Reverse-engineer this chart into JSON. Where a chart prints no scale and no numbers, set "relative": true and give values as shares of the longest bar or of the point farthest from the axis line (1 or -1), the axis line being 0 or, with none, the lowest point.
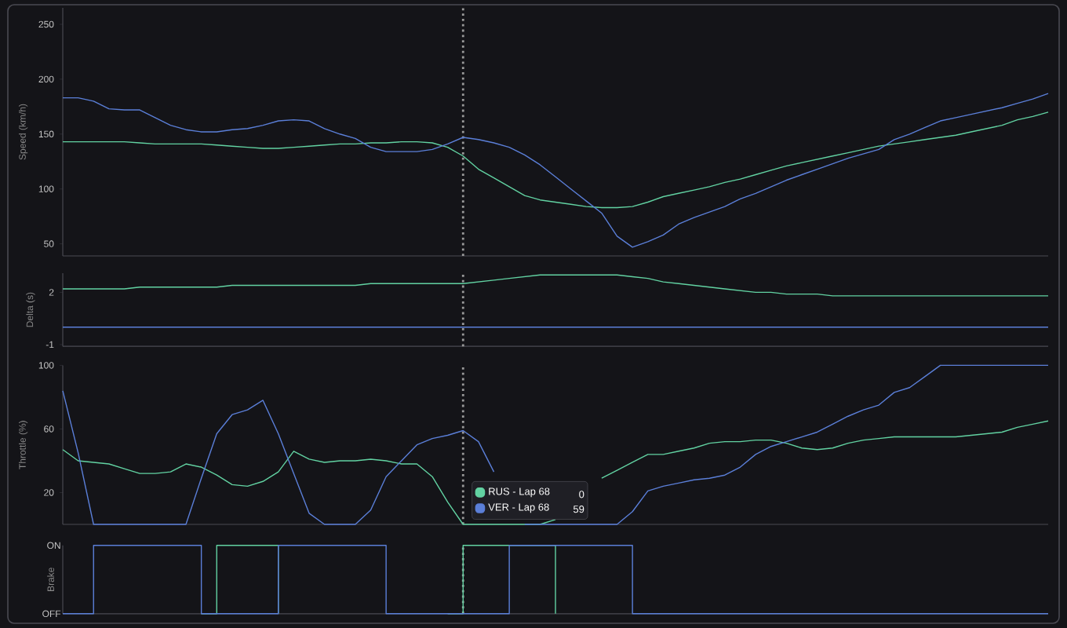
{
  "chart_data": [
    {
      "type": "line",
      "ylabel": "Speed (km/h)",
      "tick_labels": "y",
      "ylim": [
        39,
        265
      ],
      "yticks": [
        50,
        100,
        150,
        200,
        250
      ],
      "categories": [
        null,
        null,
        null,
        null,
        null,
        null,
        null,
        null,
        null,
        null,
        null,
        null,
        null,
        null,
        null,
        null,
        null,
        null,
        null,
        null,
        null,
        null,
        null,
        null,
        null,
        null,
        null,
        null,
        null,
        null,
        null,
        null,
        null,
        null,
        null,
        null,
        null,
        null,
        null,
        null,
        null,
        null,
        null,
        null,
        null,
        null,
        null,
        null,
        null,
        null,
        null,
        null,
        null,
        null,
        null,
        null,
        null,
        null,
        null,
        null,
        null,
        null,
        null,
        null,
        null
      ],
      "series": [
        {
          "color": "#62d2a2",
          "values": [
            143,
            143,
            143,
            143,
            143,
            142,
            141,
            141,
            141,
            141,
            140,
            139,
            138,
            137,
            137,
            138,
            139,
            140,
            141,
            141,
            142,
            142,
            143,
            143,
            142,
            138,
            130,
            118,
            110,
            102,
            94,
            90,
            88,
            86,
            84,
            83,
            83,
            84,
            88,
            93,
            96,
            99,
            102,
            106,
            109,
            113,
            117,
            121,
            124,
            127,
            130,
            133,
            136,
            139,
            141,
            143,
            145,
            147,
            149,
            152,
            155,
            158,
            163,
            166,
            170
          ]
        },
        {
          "color": "#5b7fd8",
          "values": [
            183,
            183,
            180,
            173,
            172,
            172,
            165,
            158,
            154,
            152,
            152,
            154,
            155,
            158,
            162,
            163,
            162,
            155,
            150,
            146,
            138,
            134,
            134,
            134,
            136,
            141,
            147,
            145,
            142,
            138,
            131,
            122,
            111,
            100,
            89,
            78,
            57,
            47,
            52,
            58,
            68,
            74,
            79,
            84,
            91,
            96,
            102,
            108,
            113,
            118,
            123,
            128,
            132,
            136,
            145,
            150,
            156,
            162,
            165,
            168,
            171,
            174,
            178,
            182,
            187
          ]
        }
      ]
    },
    {
      "type": "line",
      "ylabel": "Delta (s)",
      "tick_labels": "y",
      "ylim": [
        -1.1,
        3.1
      ],
      "yticks": [
        -1,
        2
      ],
      "categories": [
        null,
        null,
        null,
        null,
        null,
        null,
        null,
        null,
        null,
        null,
        null,
        null,
        null,
        null,
        null,
        null,
        null,
        null,
        null,
        null,
        null,
        null,
        null,
        null,
        null,
        null,
        null,
        null,
        null,
        null,
        null,
        null,
        null,
        null,
        null,
        null,
        null,
        null,
        null,
        null,
        null,
        null,
        null,
        null,
        null,
        null,
        null,
        null,
        null,
        null,
        null,
        null,
        null,
        null,
        null,
        null,
        null,
        null,
        null,
        null,
        null,
        null,
        null,
        null,
        null
      ],
      "series": [
        {
          "color": "#62d2a2",
          "values": [
            2.2,
            2.2,
            2.2,
            2.2,
            2.2,
            2.3,
            2.3,
            2.3,
            2.3,
            2.3,
            2.3,
            2.4,
            2.4,
            2.4,
            2.4,
            2.4,
            2.4,
            2.4,
            2.4,
            2.4,
            2.5,
            2.5,
            2.5,
            2.5,
            2.5,
            2.5,
            2.5,
            2.6,
            2.7,
            2.8,
            2.9,
            3.0,
            3.0,
            3.0,
            3.0,
            3.0,
            3.0,
            2.9,
            2.8,
            2.6,
            2.5,
            2.4,
            2.3,
            2.2,
            2.1,
            2.0,
            2.0,
            1.9,
            1.9,
            1.9,
            1.8,
            1.8,
            1.8,
            1.8,
            1.8,
            1.8,
            1.8,
            1.8,
            1.8,
            1.8,
            1.8,
            1.8,
            1.8,
            1.8,
            1.8
          ]
        },
        {
          "color": "#5b7fd8",
          "values": [
            0,
            0,
            0,
            0,
            0,
            0,
            0,
            0,
            0,
            0,
            0,
            0,
            0,
            0,
            0,
            0,
            0,
            0,
            0,
            0,
            0,
            0,
            0,
            0,
            0,
            0,
            0,
            0,
            0,
            0,
            0,
            0,
            0,
            0,
            0,
            0,
            0,
            0,
            0,
            0,
            0,
            0,
            0,
            0,
            0,
            0,
            0,
            0,
            0,
            0,
            0,
            0,
            0,
            0,
            0,
            0,
            0,
            0,
            0,
            0,
            0,
            0,
            0,
            0,
            0
          ]
        }
      ]
    },
    {
      "type": "line",
      "ylabel": "Throttle (%)",
      "tick_labels": "y",
      "ylim": [
        0,
        100
      ],
      "yticks": [
        20,
        60,
        100
      ],
      "legend": "bottom",
      "annotations": [
        "0",
        "59"
      ],
      "categories": [
        null,
        null,
        null,
        null,
        null,
        null,
        null,
        null,
        null,
        null,
        null,
        null,
        null,
        null,
        null,
        null,
        null,
        null,
        null,
        null,
        null,
        null,
        null,
        null,
        null,
        null,
        null,
        null,
        null,
        null,
        null,
        null,
        null,
        null,
        null,
        null,
        null,
        null,
        null,
        null,
        null,
        null,
        null,
        null,
        null,
        null,
        null,
        null,
        null,
        null,
        null,
        null,
        null,
        null,
        null,
        null,
        null,
        null,
        null,
        null,
        null,
        null,
        null,
        null,
        null
      ],
      "series": [
        {
          "name": "RUS - Lap 68",
          "color": "#62d2a2",
          "values": [
            47,
            40,
            39,
            38,
            35,
            32,
            32,
            33,
            38,
            36,
            31,
            25,
            24,
            27,
            33,
            46,
            41,
            39,
            40,
            40,
            41,
            40,
            38,
            38,
            30,
            14,
            0,
            0,
            0,
            0,
            0,
            0,
            3,
            null,
            null,
            29,
            34,
            39,
            44,
            44,
            46,
            48,
            51,
            52,
            52,
            53,
            53,
            51,
            48,
            47,
            48,
            51,
            53,
            54,
            55,
            55,
            55,
            55,
            55,
            56,
            57,
            58,
            61,
            63,
            65
          ]
        },
        {
          "name": "VER - Lap 68",
          "color": "#5b7fd8",
          "values": [
            84,
            45,
            0,
            0,
            0,
            0,
            0,
            0,
            0,
            29,
            57,
            69,
            72,
            78,
            57,
            32,
            7,
            0,
            0,
            0,
            9,
            30,
            40,
            50,
            54,
            56,
            59,
            52,
            33,
            null,
            0,
            0,
            0,
            0,
            0,
            0,
            0,
            8,
            21,
            24,
            26,
            28,
            29,
            31,
            36,
            44,
            49,
            52,
            55,
            58,
            63,
            68,
            72,
            75,
            83,
            86,
            93,
            100,
            100,
            100,
            100,
            100,
            100,
            100,
            100
          ]
        }
      ]
    },
    {
      "type": "step",
      "ylabel": "Brake",
      "tick_labels": "y",
      "relative": true,
      "annotations": [
        "ON",
        "OFF"
      ],
      "categories": [
        null,
        null,
        null,
        null,
        null,
        null,
        null,
        null,
        null,
        null,
        null,
        null,
        null,
        null,
        null,
        null,
        null,
        null,
        null,
        null,
        null,
        null,
        null,
        null,
        null,
        null,
        null,
        null,
        null,
        null,
        null,
        null,
        null,
        null,
        null,
        null,
        null,
        null,
        null,
        null,
        null,
        null,
        null,
        null,
        null,
        null,
        null,
        null,
        null,
        null,
        null,
        null,
        null,
        null,
        null,
        null,
        null,
        null,
        null,
        null,
        null,
        null,
        null,
        null,
        null
      ],
      "series": [
        {
          "color": "#62d2a2",
          "values": [
            null,
            null,
            null,
            null,
            null,
            null,
            null,
            null,
            null,
            0,
            1,
            1,
            1,
            1,
            0,
            null,
            null,
            null,
            null,
            null,
            null,
            null,
            null,
            null,
            null,
            0,
            1,
            1,
            1,
            1,
            1,
            1,
            0,
            null,
            null,
            null,
            null,
            null,
            null,
            null,
            null,
            null,
            null,
            null,
            null,
            null,
            null,
            null,
            null,
            null,
            null,
            null,
            null,
            null,
            null,
            null,
            null,
            null,
            null,
            null,
            null,
            null,
            null,
            null,
            null
          ]
        },
        {
          "color": "#5b7fd8",
          "values": [
            0,
            0,
            1,
            1,
            1,
            1,
            1,
            1,
            1,
            0,
            0,
            0,
            0,
            0,
            1,
            1,
            1,
            1,
            1,
            1,
            1,
            0,
            0,
            0,
            0,
            0,
            0,
            0,
            0,
            1,
            1,
            1,
            1,
            1,
            1,
            1,
            1,
            0,
            0,
            0,
            0,
            0,
            0,
            0,
            0,
            0,
            0,
            0,
            0,
            0,
            0,
            0,
            0,
            0,
            0,
            0,
            0,
            0,
            0,
            0,
            0,
            0,
            0,
            0,
            0
          ]
        }
      ]
    }
  ]
}
